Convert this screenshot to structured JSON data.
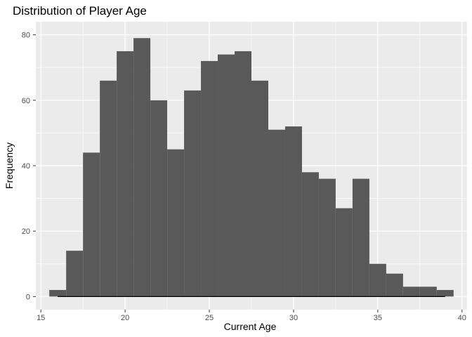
{
  "chart_data": {
    "type": "bar",
    "title": "Distribution of Player Age",
    "xlabel": "Current Age",
    "ylabel": "Frequency",
    "bin_width": 1,
    "bins": [
      {
        "x": 16,
        "count": 2
      },
      {
        "x": 17,
        "count": 14
      },
      {
        "x": 18,
        "count": 44
      },
      {
        "x": 19,
        "count": 66
      },
      {
        "x": 20,
        "count": 75
      },
      {
        "x": 21,
        "count": 79
      },
      {
        "x": 22,
        "count": 60
      },
      {
        "x": 23,
        "count": 45
      },
      {
        "x": 24,
        "count": 63
      },
      {
        "x": 25,
        "count": 72
      },
      {
        "x": 26,
        "count": 74
      },
      {
        "x": 27,
        "count": 75
      },
      {
        "x": 28,
        "count": 66
      },
      {
        "x": 29,
        "count": 51
      },
      {
        "x": 30,
        "count": 52
      },
      {
        "x": 31,
        "count": 38
      },
      {
        "x": 32,
        "count": 36
      },
      {
        "x": 33,
        "count": 27
      },
      {
        "x": 34,
        "count": 36
      },
      {
        "x": 35,
        "count": 10
      },
      {
        "x": 36,
        "count": 7
      },
      {
        "x": 37,
        "count": 3
      },
      {
        "x": 38,
        "count": 3
      },
      {
        "x": 39,
        "count": 2
      }
    ],
    "xlim": [
      14.7,
      40.3
    ],
    "ylim": [
      -4,
      84
    ],
    "x_ticks": [
      15,
      20,
      25,
      30,
      35,
      40
    ],
    "y_ticks": [
      0,
      20,
      40,
      60,
      80
    ],
    "baseline_segment": [
      16,
      39
    ],
    "grid": true,
    "colors": {
      "bar": "#595959",
      "panel": "#ebebeb",
      "grid": "#ffffff",
      "baseline": "#000000"
    }
  }
}
